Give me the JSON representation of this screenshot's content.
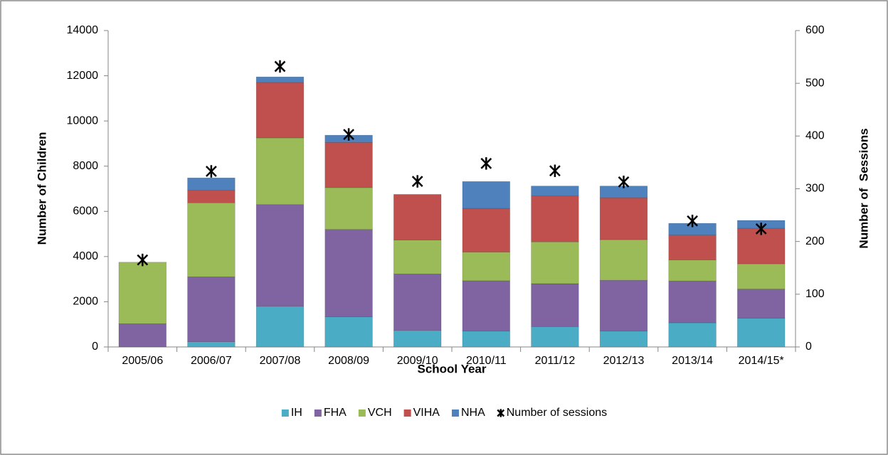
{
  "chart_data": {
    "type": "bar",
    "stacked": true,
    "x_label": "School Year",
    "y_label": "Number of Children",
    "y2_label": "Number of  Sessions",
    "categories": [
      "2005/06",
      "2006/07",
      "2007/08",
      "2008/09",
      "2009/10",
      "2010/11",
      "2011/12",
      "2012/13",
      "2013/14",
      "2014/15*"
    ],
    "series": [
      {
        "name": "IH",
        "color": "#4bacc6",
        "values": [
          0,
          230,
          1800,
          1330,
          730,
          700,
          900,
          700,
          1070,
          1270
        ]
      },
      {
        "name": "FHA",
        "color": "#8064a2",
        "values": [
          1030,
          2870,
          4500,
          3870,
          2500,
          2230,
          1900,
          2250,
          1850,
          1290
        ]
      },
      {
        "name": "VCH",
        "color": "#9bbb59",
        "values": [
          2720,
          3280,
          2950,
          1850,
          1500,
          1270,
          1850,
          1800,
          930,
          1120
        ]
      },
      {
        "name": "VIHA",
        "color": "#c0504d",
        "values": [
          0,
          550,
          2450,
          2000,
          2020,
          1930,
          2030,
          1850,
          1100,
          1570
        ]
      },
      {
        "name": "NHA",
        "color": "#4f81bd",
        "values": [
          0,
          550,
          250,
          320,
          0,
          1190,
          440,
          520,
          520,
          350
        ]
      },
      {
        "name": "Number of sessions",
        "type": "marker",
        "color": "#000000",
        "axis": "y2",
        "values": [
          165,
          333,
          532,
          403,
          314,
          348,
          334,
          313,
          239,
          224
        ]
      }
    ],
    "ylim": [
      0,
      14000
    ],
    "yticks": [
      0,
      2000,
      4000,
      6000,
      8000,
      10000,
      12000,
      14000
    ],
    "y2lim": [
      0,
      600
    ],
    "y2ticks": [
      0,
      100,
      200,
      300,
      400,
      500,
      600
    ],
    "legend": "bottom"
  }
}
